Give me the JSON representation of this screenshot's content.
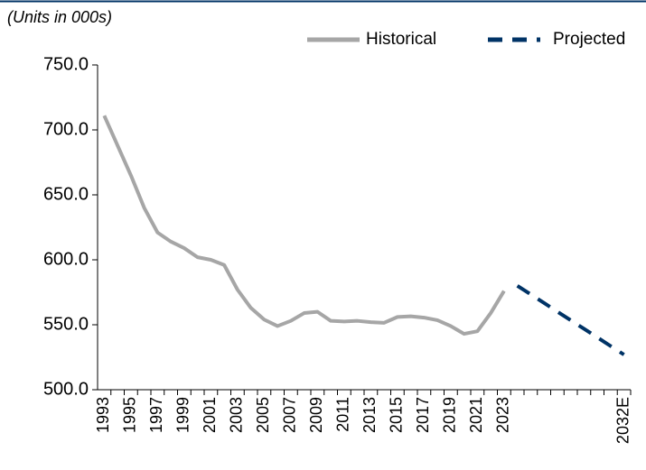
{
  "chart_data": {
    "type": "line",
    "subtitle": "(Units in 000s)",
    "categories": [
      "1993",
      null,
      "1995",
      null,
      "1997",
      null,
      "1999",
      null,
      "2001",
      null,
      "2003",
      null,
      "2005",
      null,
      "2007",
      null,
      "2009",
      null,
      "2011",
      null,
      "2013",
      null,
      "2015",
      null,
      "2017",
      null,
      "2019",
      null,
      "2021",
      null,
      "2023",
      null,
      null,
      null,
      null,
      null,
      null,
      null,
      null,
      "2032E"
    ],
    "series": [
      {
        "name": "Historical",
        "color": "#a6a6a6",
        "dashed": false,
        "values": [
          711,
          688,
          665,
          640,
          621,
          614,
          609,
          602,
          600,
          596,
          577,
          563,
          554,
          549,
          553,
          559,
          560,
          553,
          552.5,
          553,
          552,
          551.5,
          556,
          556.5,
          555.5,
          553.5,
          549,
          543,
          545,
          559,
          576,
          null,
          null,
          null,
          null,
          null,
          null,
          null,
          null,
          null
        ]
      },
      {
        "name": "Projected",
        "color": "#003366",
        "dashed": true,
        "values": [
          null,
          null,
          null,
          null,
          null,
          null,
          null,
          null,
          null,
          null,
          null,
          null,
          null,
          null,
          null,
          null,
          null,
          null,
          null,
          null,
          null,
          null,
          null,
          null,
          null,
          null,
          null,
          null,
          null,
          null,
          null,
          580,
          573.4,
          566.8,
          560.1,
          553.5,
          546.9,
          540.3,
          533.6,
          527
        ]
      }
    ],
    "ylim": [
      500,
      750
    ],
    "yticks": [
      {
        "value": 500,
        "label": "500.0"
      },
      {
        "value": 550,
        "label": "550.0"
      },
      {
        "value": 600,
        "label": "600.0"
      },
      {
        "value": 650,
        "label": "650.0"
      },
      {
        "value": 700,
        "label": "700.0"
      },
      {
        "value": 750,
        "label": "750.0"
      }
    ],
    "grid": false,
    "legend": "top-right"
  }
}
